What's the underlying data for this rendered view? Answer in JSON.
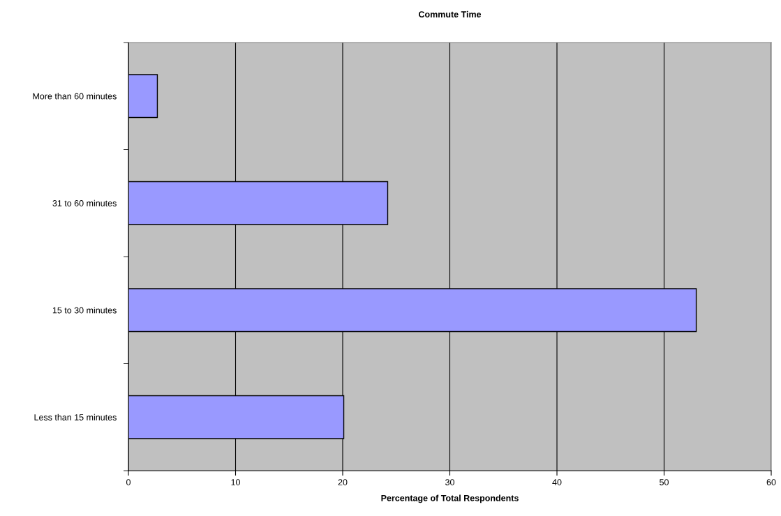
{
  "chart_data": {
    "type": "bar",
    "orientation": "horizontal",
    "title": "Commute Time",
    "xlabel": "Percentage of Total Respondents",
    "categories": [
      "More than 60 minutes",
      "31 to 60 minutes",
      "15 to 30 minutes",
      "Less than 15 minutes"
    ],
    "values": [
      2.7,
      24.2,
      53.0,
      20.1
    ],
    "color": "#9999ff",
    "xlim": [
      0,
      60
    ],
    "xticks": [
      0,
      10,
      20,
      30,
      40,
      50,
      60
    ],
    "grid": "x",
    "legend": false
  }
}
